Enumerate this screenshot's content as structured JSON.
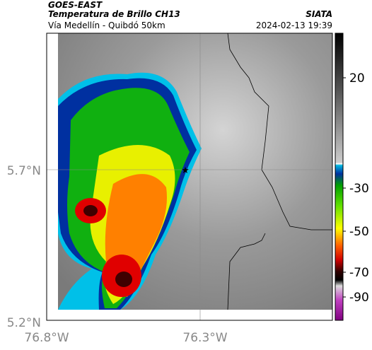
{
  "header": {
    "source": "GOES-EAST",
    "title": "Temperatura de Brillo CH13",
    "subtitle": "Vía Medellín - Quibdó 50km",
    "agency": "SIATA",
    "datetime": "2024-02-13 19:39"
  },
  "axes": {
    "lat_labels": [
      "5.7°N",
      "5.2°N"
    ],
    "lon_labels": [
      "76.8°W",
      "76.3°W"
    ]
  },
  "colorbar": {
    "ticks": [
      20,
      -30,
      -50,
      -70,
      -90
    ]
  }
}
